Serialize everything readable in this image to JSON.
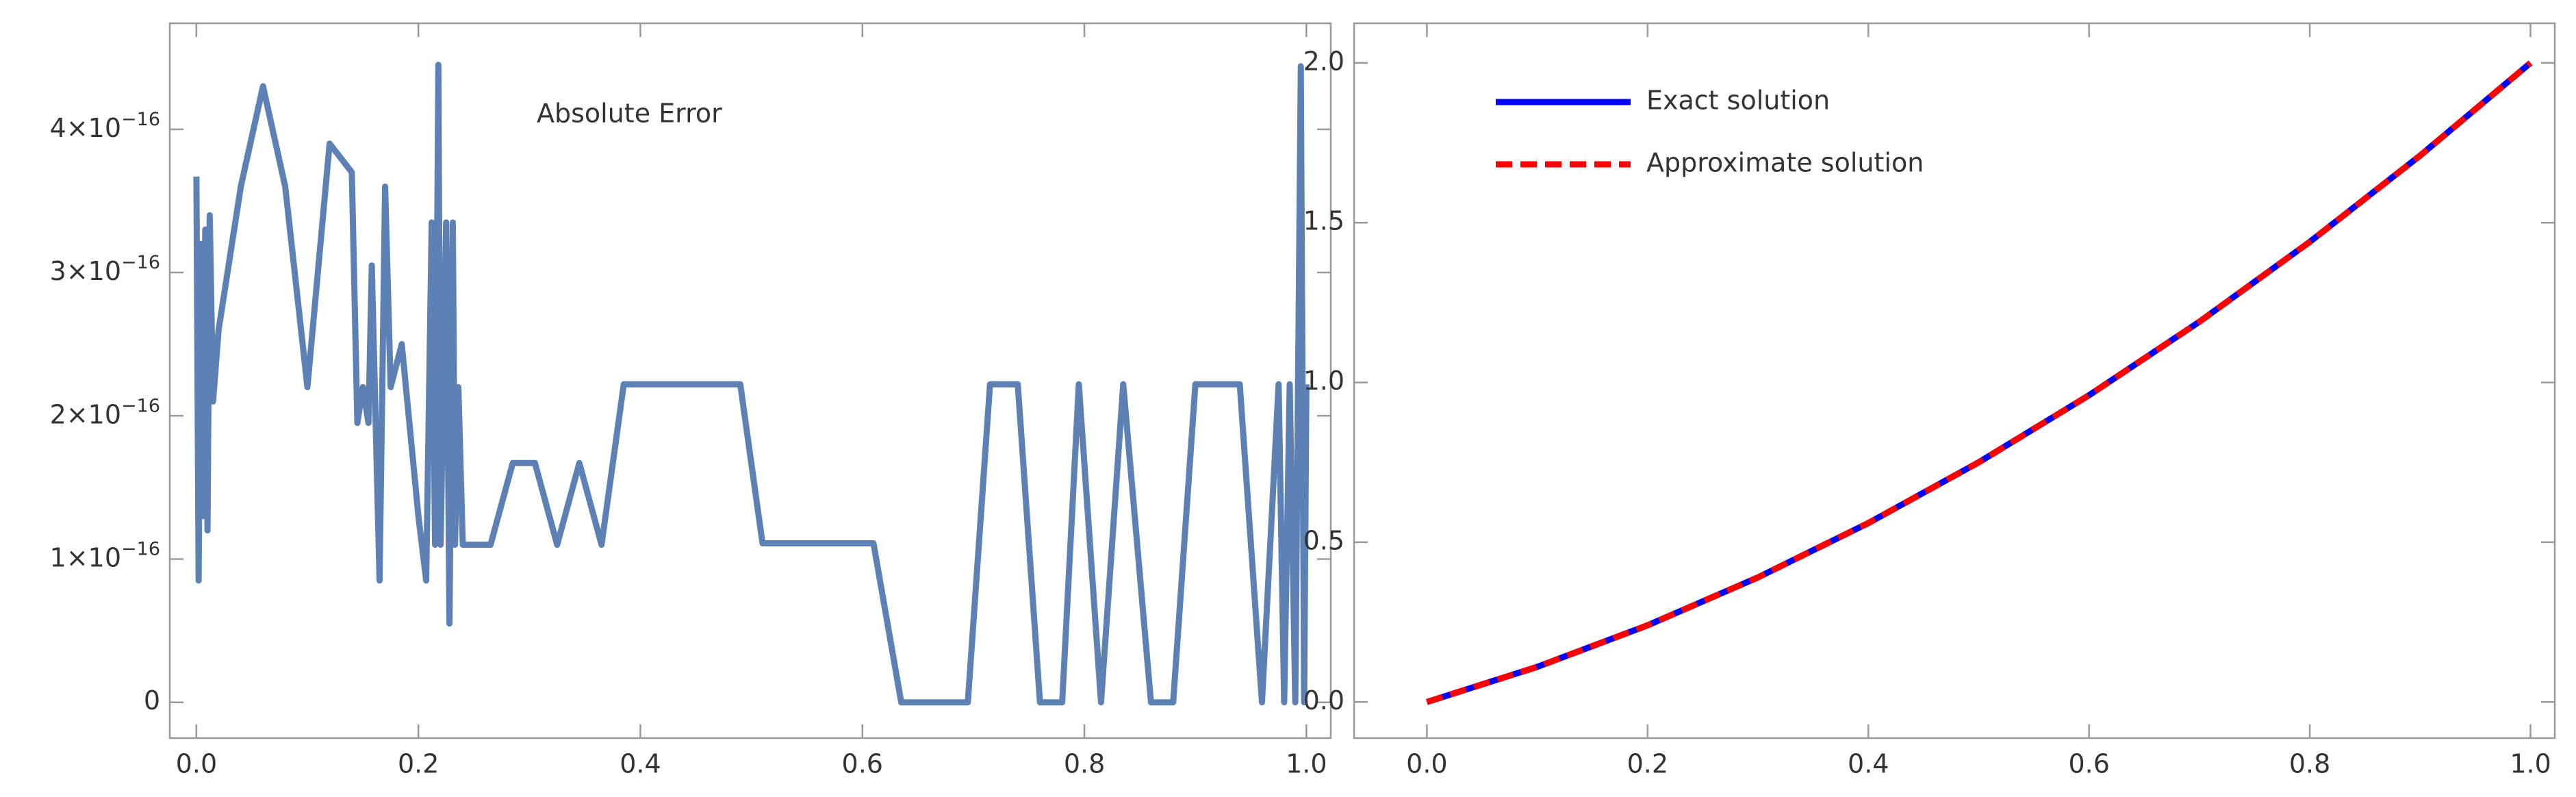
{
  "chart_data": [
    {
      "type": "line",
      "annotation": "Absolute Error",
      "xlim": [
        -0.024,
        1.022
      ],
      "ylim": [
        -2.5e-17,
        4.74e-16
      ],
      "xticks": [
        {
          "value": 0,
          "label": "0.0"
        },
        0.2,
        0.4,
        0.6,
        0.8,
        {
          "value": 1,
          "label": "1.0"
        }
      ],
      "yticks": [
        0,
        {
          "value": 1e-16,
          "label": "1×10−16"
        },
        {
          "value": 2e-16,
          "label": "2×10−16"
        },
        {
          "value": 3e-16,
          "label": "3×10−16"
        },
        {
          "value": 4e-16,
          "label": "4×10−16"
        }
      ],
      "x": [
        0,
        0.002,
        0.004,
        0.006,
        0.008,
        0.01,
        0.012,
        0.015,
        0.02,
        0.04,
        0.06,
        0.08,
        0.1,
        0.12,
        0.14,
        0.145,
        0.15,
        0.155,
        0.158,
        0.165,
        0.17,
        0.175,
        0.185,
        0.2,
        0.207,
        0.212,
        0.215,
        0.218,
        0.22,
        0.225,
        0.228,
        0.231,
        0.233,
        0.236,
        0.24,
        0.265,
        0.285,
        0.305,
        0.325,
        0.345,
        0.365,
        0.385,
        0.49,
        0.51,
        0.61,
        0.635,
        0.695,
        0.715,
        0.74,
        0.76,
        0.78,
        0.795,
        0.815,
        0.835,
        0.86,
        0.88,
        0.9,
        0.94,
        0.96,
        0.975,
        0.98,
        0.985,
        0.99,
        0.995,
        0.998,
        1.0
      ],
      "series": [
        {
          "color": "#5e81b5",
          "line_style": "solid",
          "values": [
            3.67e-16,
            8.5e-17,
            3.2e-16,
            1.3e-16,
            3.3e-16,
            1.2e-16,
            3.4e-16,
            2.1e-16,
            2.6e-16,
            3.6e-16,
            4.3e-16,
            3.6e-16,
            2.2e-16,
            3.9e-16,
            3.7e-16,
            1.95e-16,
            2.2e-16,
            1.95e-16,
            3.05e-16,
            8.5e-17,
            3.6e-16,
            2.2e-16,
            2.5e-16,
            1.3e-16,
            8.5e-17,
            3.35e-16,
            1.1e-16,
            4.45e-16,
            1.1e-16,
            3.35e-16,
            5.5e-17,
            3.35e-16,
            1.1e-16,
            2.2e-16,
            1.1e-16,
            1.1e-16,
            1.67e-16,
            1.67e-16,
            1.1e-16,
            1.67e-16,
            1.1e-16,
            2.22e-16,
            2.22e-16,
            1.11e-16,
            1.11e-16,
            0,
            0,
            2.22e-16,
            2.22e-16,
            0,
            0,
            2.22e-16,
            0,
            2.22e-16,
            0,
            0,
            2.22e-16,
            2.22e-16,
            0,
            2.22e-16,
            0,
            2.22e-16,
            0,
            4.44e-16,
            0,
            2.22e-16
          ]
        }
      ]
    },
    {
      "type": "line",
      "legend": "top-left",
      "xlim": [
        -0.066,
        1.022
      ],
      "ylim": [
        -0.113,
        2.124
      ],
      "xticks": [
        {
          "value": 0,
          "label": "0.0"
        },
        0.2,
        0.4,
        0.6,
        0.8,
        {
          "value": 1,
          "label": "1.0"
        }
      ],
      "yticks": [
        {
          "value": 0,
          "label": "0.0"
        },
        0.5,
        {
          "value": 1,
          "label": "1.0"
        },
        1.5,
        {
          "value": 2,
          "label": "2.0"
        }
      ],
      "x": [
        0,
        0.1,
        0.2,
        0.3,
        0.4,
        0.5,
        0.6,
        0.7,
        0.8,
        0.9,
        1.0
      ],
      "series": [
        {
          "name": "Exact solution",
          "color": "#0000ff",
          "line_style": "solid",
          "values": [
            0,
            0.11,
            0.24,
            0.39,
            0.56,
            0.75,
            0.96,
            1.19,
            1.44,
            1.71,
            2.0
          ]
        },
        {
          "name": "Approximate solution",
          "color": "#ff0000",
          "line_style": "dashed",
          "values": [
            0,
            0.11,
            0.24,
            0.39,
            0.56,
            0.75,
            0.96,
            1.19,
            1.44,
            1.71,
            2.0
          ]
        }
      ]
    }
  ]
}
